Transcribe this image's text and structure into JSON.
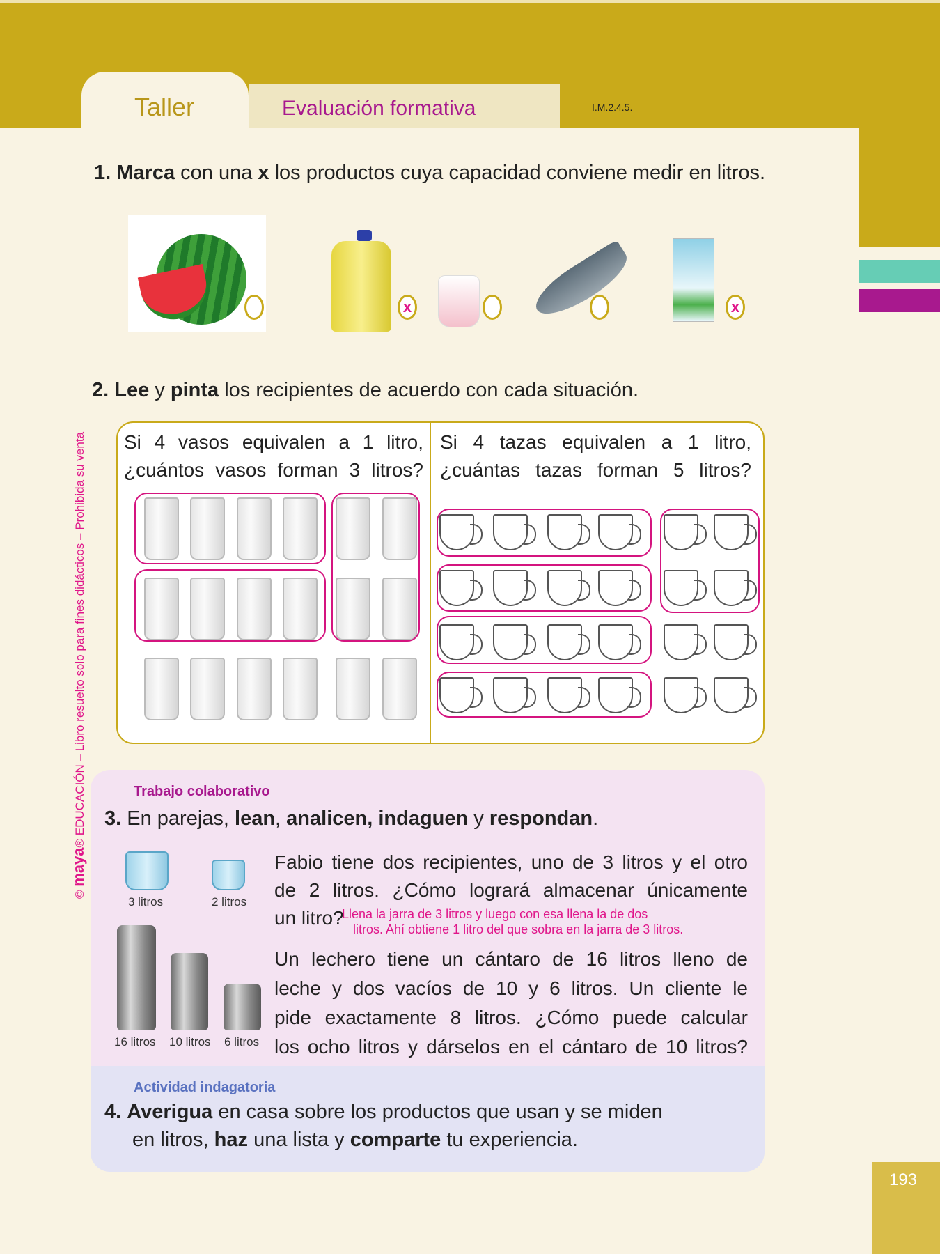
{
  "header": {
    "tab_taller": "Taller",
    "tab_eval": "Evaluación formativa",
    "code": "I.M.2.4.5."
  },
  "colors": {
    "gold": "#c9aa1a",
    "magenta": "#a8198e",
    "pink_answer": "#e0168a",
    "teal": "#66cdb5"
  },
  "side_text": {
    "brand": "maya",
    "rest": "EDUCACIÓN – Libro resuelto solo para fines didácticos – Prohibida su venta"
  },
  "q1": {
    "num": "1.",
    "bold1": "Marca",
    "t1": "con una",
    "bold2": "x",
    "t2": "los productos cuya capacidad conviene medir en litros.",
    "products": [
      {
        "name": "watermelon",
        "mark": ""
      },
      {
        "name": "oil-jug",
        "mark": "x"
      },
      {
        "name": "yogurt",
        "mark": ""
      },
      {
        "name": "fish",
        "mark": ""
      },
      {
        "name": "milk-carton",
        "mark": "x"
      }
    ]
  },
  "q2": {
    "num": "2.",
    "bold1": "Lee",
    "t1": "y",
    "bold2": "pinta",
    "t2": "los recipientes de acuerdo con cada situación.",
    "left_line1": "Si 4 vasos equivalen a 1 litro,",
    "left_line2": "¿cuántos vasos forman 3 litros?",
    "right_line1": "Si 4 tazas equivalen a 1 litro,",
    "right_line2": "¿cuántas tazas forman 5 litros?"
  },
  "q3": {
    "label": "Trabajo colaborativo",
    "num": "3.",
    "t1": "En parejas,",
    "b1": "lean",
    "t2": ",",
    "b2": "analicen, indaguen",
    "t3": "y",
    "b4": "respondan",
    "t4": ".",
    "p1_l1": "Fabio tiene dos recipientes, uno de 3 litros y el otro",
    "p1_l2": "de 2 litros. ¿Cómo logrará almacenar únicamente",
    "p1_l3": "un litro?",
    "ans_l1": "Llena la jarra de 3 litros y luego con esa llena la de dos",
    "ans_l2": "litros. Ahí obtiene 1 litro del que sobra en la jarra de 3 litros.",
    "p2_l1": "Un lechero tiene un cántaro de 16 litros lleno de",
    "p2_l2": "leche y dos vacíos de 10 y 6 litros. Un cliente le",
    "p2_l3": "pide exactamente 8 litros. ¿Cómo puede calcular",
    "p2_l4": "los ocho litros y dárselos en el cántaro de 10 litros?",
    "jug_labels": [
      "3 litros",
      "2 litros"
    ],
    "can_labels": [
      "16 litros",
      "10 litros",
      "6 litros"
    ]
  },
  "q4": {
    "label": "Actividad indagatoria",
    "num": "4.",
    "b1": "Averigua",
    "t1": "en casa sobre los productos que usan y se miden",
    "t2": "en litros,",
    "b2": "haz",
    "t3": "una lista y",
    "b3": "comparte",
    "t4": "tu experiencia."
  },
  "page_number": "193"
}
